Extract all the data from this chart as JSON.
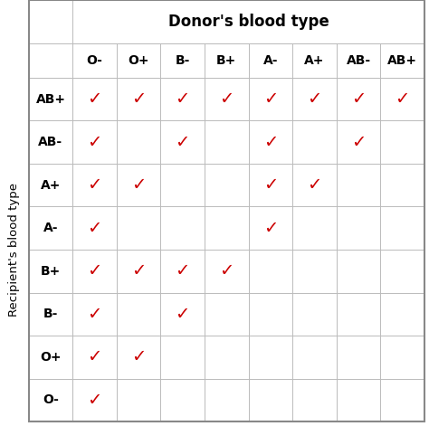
{
  "donor_types": [
    "O-",
    "O+",
    "B-",
    "B+",
    "A-",
    "A+",
    "AB-",
    "AB+"
  ],
  "recipient_types": [
    "AB+",
    "AB-",
    "A+",
    "A-",
    "B+",
    "B-",
    "O+",
    "O-"
  ],
  "compatibility": [
    [
      1,
      1,
      1,
      1,
      1,
      1,
      1,
      1
    ],
    [
      1,
      0,
      1,
      0,
      1,
      0,
      1,
      0
    ],
    [
      1,
      1,
      0,
      0,
      1,
      1,
      0,
      0
    ],
    [
      1,
      0,
      0,
      0,
      1,
      0,
      0,
      0
    ],
    [
      1,
      1,
      1,
      1,
      0,
      0,
      0,
      0
    ],
    [
      1,
      0,
      1,
      0,
      0,
      0,
      0,
      0
    ],
    [
      1,
      1,
      0,
      0,
      0,
      0,
      0,
      0
    ],
    [
      1,
      0,
      0,
      0,
      0,
      0,
      0,
      0
    ]
  ],
  "check_color": "#cc0000",
  "header_bg": "#ffffff",
  "grid_color": "#bbbbbb",
  "title": "Donor's blood type",
  "ylabel": "Recipient's blood type",
  "bg_color": "#ffffff",
  "title_fontsize": 12,
  "label_fontsize": 9.5,
  "tick_fontsize": 10,
  "check_fontsize": 14,
  "header_text_color": "#000000",
  "outer_border_color": "#999999"
}
